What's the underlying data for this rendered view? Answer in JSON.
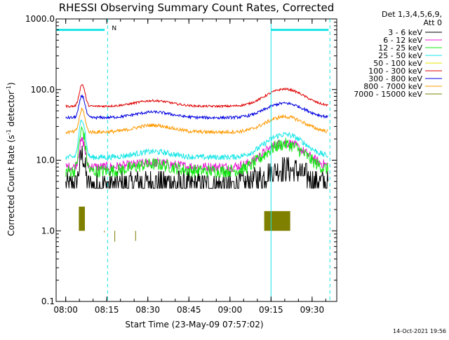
{
  "chart_data": {
    "type": "line",
    "title": "RHESSI Observing Summary Count Rates, Corrected",
    "xlabel": "Start Time (23-May-09 07:57:02)",
    "ylabel": "Corrected Count Rate (s⁻¹ detector⁻¹)",
    "ylabel_main": "Corrected Count Rate (s",
    "ylabel_sup1": "-1",
    "ylabel_mid": " detector",
    "ylabel_sup2": "-1",
    "ylabel_end": ")",
    "yscale": "log",
    "xlim_minutes": [
      -3.5,
      99
    ],
    "ylim": [
      0.1,
      1000
    ],
    "x_ticks": [
      {
        "label": "08:00",
        "t": 0
      },
      {
        "label": "08:15",
        "t": 15
      },
      {
        "label": "08:30",
        "t": 30
      },
      {
        "label": "08:45",
        "t": 45
      },
      {
        "label": "09:00",
        "t": 60
      },
      {
        "label": "09:15",
        "t": 75
      },
      {
        "label": "09:30",
        "t": 90
      }
    ],
    "y_ticks": [
      {
        "label": "1000.0",
        "v": 1000
      },
      {
        "label": "100.0",
        "v": 100
      },
      {
        "label": "10.0",
        "v": 10
      },
      {
        "label": "1.0",
        "v": 1
      },
      {
        "label": "0.1",
        "v": 0.1
      }
    ],
    "legend_header": [
      "Det 1,3,4,5,6,9,",
      "Att 0"
    ],
    "series": [
      {
        "name": "3 - 6 keV",
        "color": "#000000",
        "base": 4.5,
        "peak": 12,
        "peak_t": 6,
        "peak_w": 1.2,
        "flare2": 1.7,
        "hump": 1.1,
        "noise": 0.18,
        "step": true
      },
      {
        "name": "6 - 12 keV",
        "color": "#e81bd2",
        "base": 8,
        "peak": 19,
        "peak_t": 6,
        "peak_w": 1.3,
        "flare2": 2.2,
        "hump": 1.15,
        "noise": 0.07
      },
      {
        "name": "12 - 25 keV",
        "color": "#12e812",
        "base": 7,
        "peak": 27,
        "peak_t": 6,
        "peak_w": 1.3,
        "flare2": 2.4,
        "hump": 1.25,
        "noise": 0.09
      },
      {
        "name": "25 - 50 keV",
        "color": "#16e6e6",
        "base": 11,
        "peak": 38,
        "peak_t": 6,
        "peak_w": 1.3,
        "flare2": 2.1,
        "hump": 1.2,
        "noise": 0.04
      },
      {
        "name": "50 - 100 keV",
        "color": "#e4e600",
        "base": 0,
        "peak": 0,
        "peak_t": 6,
        "peak_w": 1,
        "flare2": 1,
        "hump": 1,
        "noise": 0
      },
      {
        "name": "100 - 300 keV",
        "color": "#e00000",
        "base": 58,
        "peak": 118,
        "peak_t": 6,
        "peak_w": 1.3,
        "flare2": 1.75,
        "hump": 1.2,
        "noise": 0.015
      },
      {
        "name": "300 - 800 keV",
        "color": "#0000e0",
        "base": 40,
        "peak": 82,
        "peak_t": 6,
        "peak_w": 1.3,
        "flare2": 1.6,
        "hump": 1.2,
        "noise": 0.02
      },
      {
        "name": "800 - 7000 keV",
        "color": "#ff9900",
        "base": 25,
        "peak": 52,
        "peak_t": 6,
        "peak_w": 1.3,
        "flare2": 1.65,
        "hump": 1.25,
        "noise": 0.025
      },
      {
        "name": "7000 - 15000 keV",
        "color": "#7f7f00",
        "base": 0,
        "peak": 0,
        "peak_t": 6,
        "peak_w": 1,
        "flare2": 1,
        "hump": 1,
        "noise": 0
      }
    ],
    "sparse_olive_blocks": [
      {
        "t0": 4.8,
        "t1": 7.0,
        "v": 2.2
      },
      {
        "t0": 72.5,
        "t1": 82.0,
        "v": 1.9
      },
      {
        "t0": 14.0,
        "t1": 14.2,
        "v": 0.95
      },
      {
        "t0": 17.8,
        "t1": 18.0,
        "v": 0.7
      },
      {
        "t0": 25.4,
        "t1": 25.6,
        "v": 0.72
      }
    ],
    "markers": [
      {
        "t": 15.3,
        "style": "dashed",
        "label": "N"
      },
      {
        "t": 75.0,
        "style": "solid",
        "label": ""
      },
      {
        "t": 96.5,
        "style": "dashed",
        "label": ""
      }
    ],
    "night_bars": [
      {
        "t0": -3.5,
        "t1": 14.2,
        "v": 700
      },
      {
        "t0": 75.0,
        "t1": 96.0,
        "v": 700
      }
    ],
    "timestamp": "14-Oct-2021 19:56"
  }
}
